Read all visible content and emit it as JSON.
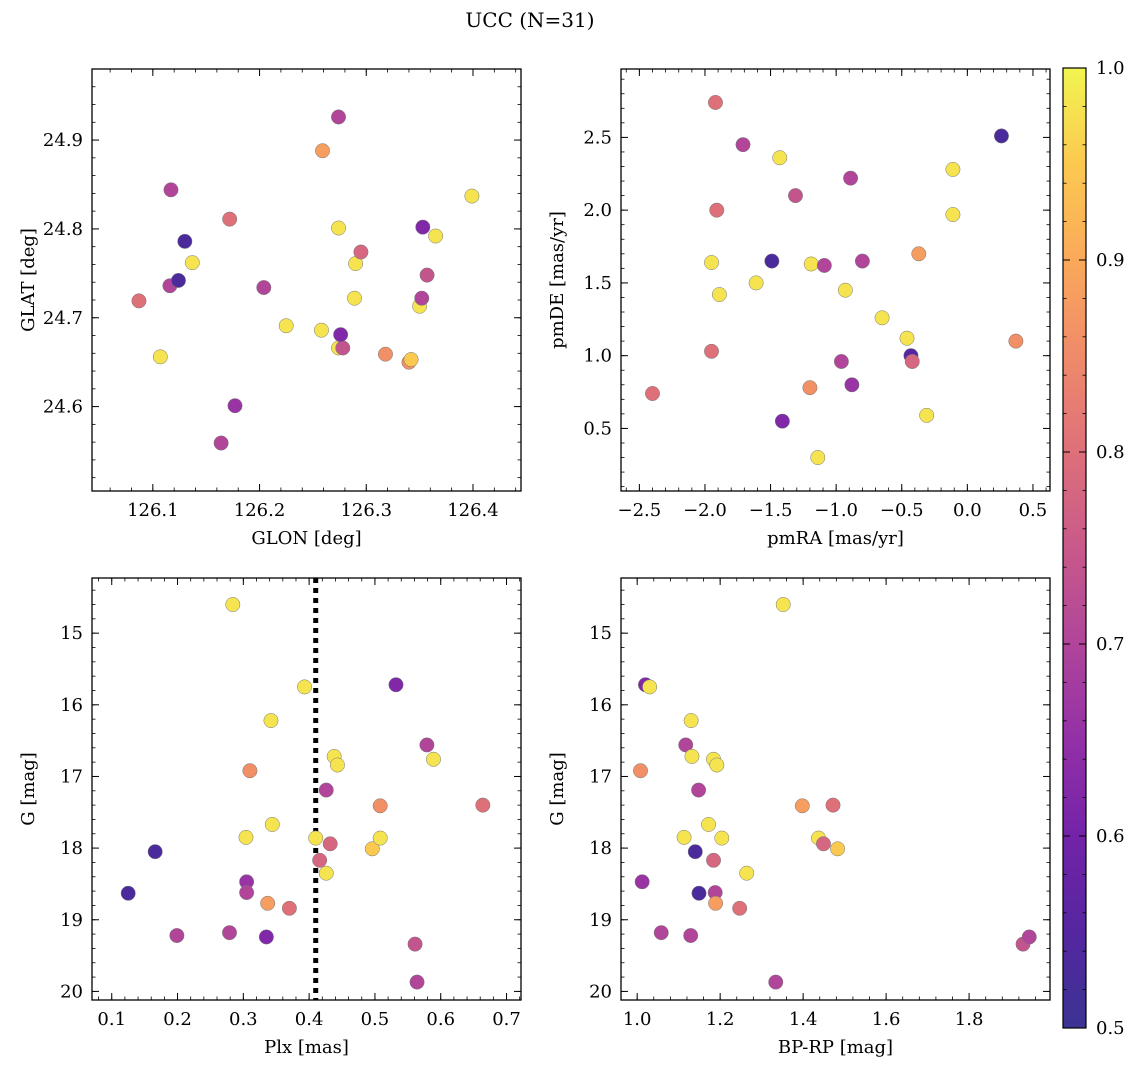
{
  "figure": {
    "title": "UCC (N=31)"
  },
  "colorbar": {
    "colormap": "plasma",
    "range": [
      0.5,
      1.0
    ],
    "ticks": [
      0.5,
      0.6,
      0.7,
      0.8,
      0.9,
      1.0
    ],
    "tick_labels": [
      "0.5",
      "0.6",
      "0.7",
      "0.8",
      "0.9",
      "1.0"
    ]
  },
  "chart_data": [
    {
      "type": "scatter",
      "id": "glon-glat",
      "xlabel": "GLON [deg]",
      "ylabel": "GLAT [deg]",
      "xlim": [
        126.043,
        126.445
      ],
      "ylim": [
        24.505,
        24.98
      ],
      "y_inverted": false,
      "xticks": [
        126.1,
        126.2,
        126.3,
        126.4
      ],
      "xtick_labels": [
        "126.1",
        "126.2",
        "126.3",
        "126.4"
      ],
      "yticks": [
        24.6,
        24.7,
        24.8,
        24.9
      ],
      "ytick_labels": [
        "24.6",
        "24.7",
        "24.8",
        "24.9"
      ],
      "grid": false,
      "points": [
        {
          "x": 126.087,
          "y": 24.719,
          "c": 0.8
        },
        {
          "x": 126.107,
          "y": 24.656,
          "c": 0.98
        },
        {
          "x": 126.117,
          "y": 24.844,
          "c": 0.7
        },
        {
          "x": 126.116,
          "y": 24.736,
          "c": 0.7
        },
        {
          "x": 126.124,
          "y": 24.742,
          "c": 0.53
        },
        {
          "x": 126.13,
          "y": 24.786,
          "c": 0.53
        },
        {
          "x": 126.137,
          "y": 24.762,
          "c": 0.98
        },
        {
          "x": 126.164,
          "y": 24.559,
          "c": 0.7
        },
        {
          "x": 126.172,
          "y": 24.811,
          "c": 0.8
        },
        {
          "x": 126.177,
          "y": 24.601,
          "c": 0.66
        },
        {
          "x": 126.204,
          "y": 24.734,
          "c": 0.7
        },
        {
          "x": 126.225,
          "y": 24.691,
          "c": 0.98
        },
        {
          "x": 126.259,
          "y": 24.888,
          "c": 0.88
        },
        {
          "x": 126.258,
          "y": 24.686,
          "c": 0.98
        },
        {
          "x": 126.274,
          "y": 24.926,
          "c": 0.7
        },
        {
          "x": 126.274,
          "y": 24.801,
          "c": 0.98
        },
        {
          "x": 126.274,
          "y": 24.666,
          "c": 0.98
        },
        {
          "x": 126.278,
          "y": 24.666,
          "c": 0.74
        },
        {
          "x": 126.276,
          "y": 24.681,
          "c": 0.62
        },
        {
          "x": 126.29,
          "y": 24.761,
          "c": 0.98
        },
        {
          "x": 126.289,
          "y": 24.722,
          "c": 0.98
        },
        {
          "x": 126.295,
          "y": 24.774,
          "c": 0.78
        },
        {
          "x": 126.318,
          "y": 24.659,
          "c": 0.86
        },
        {
          "x": 126.34,
          "y": 24.65,
          "c": 0.86
        },
        {
          "x": 126.342,
          "y": 24.653,
          "c": 0.95
        },
        {
          "x": 126.35,
          "y": 24.713,
          "c": 0.98
        },
        {
          "x": 126.352,
          "y": 24.722,
          "c": 0.7
        },
        {
          "x": 126.353,
          "y": 24.802,
          "c": 0.62
        },
        {
          "x": 126.357,
          "y": 24.748,
          "c": 0.74
        },
        {
          "x": 126.365,
          "y": 24.792,
          "c": 0.98
        },
        {
          "x": 126.399,
          "y": 24.837,
          "c": 0.98
        }
      ]
    },
    {
      "type": "scatter",
      "id": "pmra-pmde",
      "xlabel": "pmRA [mas/yr]",
      "ylabel": "pmDE [mas/yr]",
      "xlim": [
        -2.64,
        0.63
      ],
      "ylim": [
        0.07,
        2.97
      ],
      "y_inverted": false,
      "xticks": [
        -2.5,
        -2.0,
        -1.5,
        -1.0,
        -0.5,
        0.0,
        0.5
      ],
      "xtick_labels": [
        "−2.5",
        "−2.0",
        "−1.5",
        "−1.0",
        "−0.5",
        "0.0",
        "0.5"
      ],
      "yticks": [
        0.5,
        1.0,
        1.5,
        2.0,
        2.5
      ],
      "ytick_labels": [
        "0.5",
        "1.0",
        "1.5",
        "2.0",
        "2.5"
      ],
      "grid": false,
      "points": [
        {
          "x": -2.4,
          "y": 0.74,
          "c": 0.8
        },
        {
          "x": -1.95,
          "y": 1.03,
          "c": 0.8
        },
        {
          "x": -1.95,
          "y": 1.64,
          "c": 0.98
        },
        {
          "x": -1.92,
          "y": 2.74,
          "c": 0.8
        },
        {
          "x": -1.91,
          "y": 2.0,
          "c": 0.8
        },
        {
          "x": -1.89,
          "y": 1.42,
          "c": 0.98
        },
        {
          "x": -1.71,
          "y": 2.45,
          "c": 0.7
        },
        {
          "x": -1.61,
          "y": 1.5,
          "c": 0.98
        },
        {
          "x": -1.49,
          "y": 1.65,
          "c": 0.53
        },
        {
          "x": -1.43,
          "y": 2.36,
          "c": 0.98
        },
        {
          "x": -1.41,
          "y": 0.55,
          "c": 0.62
        },
        {
          "x": -1.2,
          "y": 0.78,
          "c": 0.86
        },
        {
          "x": -1.19,
          "y": 1.63,
          "c": 0.98
        },
        {
          "x": -1.14,
          "y": 0.3,
          "c": 0.98
        },
        {
          "x": -1.31,
          "y": 2.1,
          "c": 0.74
        },
        {
          "x": -1.09,
          "y": 1.62,
          "c": 0.7
        },
        {
          "x": -0.96,
          "y": 0.96,
          "c": 0.7
        },
        {
          "x": -0.93,
          "y": 1.45,
          "c": 0.98
        },
        {
          "x": -0.89,
          "y": 2.22,
          "c": 0.7
        },
        {
          "x": -0.88,
          "y": 0.8,
          "c": 0.66
        },
        {
          "x": -0.8,
          "y": 1.65,
          "c": 0.7
        },
        {
          "x": -0.65,
          "y": 1.26,
          "c": 0.98
        },
        {
          "x": -0.46,
          "y": 1.12,
          "c": 0.98
        },
        {
          "x": -0.43,
          "y": 1.0,
          "c": 0.55
        },
        {
          "x": -0.42,
          "y": 0.96,
          "c": 0.78
        },
        {
          "x": -0.37,
          "y": 1.7,
          "c": 0.88
        },
        {
          "x": -0.31,
          "y": 0.59,
          "c": 0.98
        },
        {
          "x": -0.11,
          "y": 1.97,
          "c": 0.98
        },
        {
          "x": -0.11,
          "y": 2.28,
          "c": 0.98
        },
        {
          "x": 0.26,
          "y": 2.51,
          "c": 0.53
        },
        {
          "x": 0.37,
          "y": 1.1,
          "c": 0.86
        }
      ]
    },
    {
      "type": "scatter",
      "id": "plx-g",
      "xlabel": "Plx [mas]",
      "ylabel": "G [mag]",
      "xlim": [
        0.07,
        0.722
      ],
      "ylim": [
        20.12,
        14.23
      ],
      "y_inverted": true,
      "xticks": [
        0.1,
        0.2,
        0.3,
        0.4,
        0.5,
        0.6,
        0.7
      ],
      "xtick_labels": [
        "0.1",
        "0.2",
        "0.3",
        "0.4",
        "0.5",
        "0.6",
        "0.7"
      ],
      "yticks": [
        15,
        16,
        17,
        18,
        19,
        20
      ],
      "ytick_labels": [
        "15",
        "16",
        "17",
        "18",
        "19",
        "20"
      ],
      "grid": false,
      "reference_line": {
        "x": 0.41,
        "style": "dotted"
      },
      "points": [
        {
          "x": 0.125,
          "y": 18.63,
          "c": 0.53
        },
        {
          "x": 0.166,
          "y": 18.05,
          "c": 0.53
        },
        {
          "x": 0.199,
          "y": 19.22,
          "c": 0.7
        },
        {
          "x": 0.279,
          "y": 19.18,
          "c": 0.7
        },
        {
          "x": 0.284,
          "y": 14.6,
          "c": 0.98
        },
        {
          "x": 0.304,
          "y": 17.85,
          "c": 0.98
        },
        {
          "x": 0.305,
          "y": 18.47,
          "c": 0.66
        },
        {
          "x": 0.305,
          "y": 18.62,
          "c": 0.7
        },
        {
          "x": 0.31,
          "y": 16.92,
          "c": 0.86
        },
        {
          "x": 0.335,
          "y": 19.24,
          "c": 0.62
        },
        {
          "x": 0.337,
          "y": 18.77,
          "c": 0.88
        },
        {
          "x": 0.342,
          "y": 16.22,
          "c": 0.98
        },
        {
          "x": 0.344,
          "y": 17.67,
          "c": 0.98
        },
        {
          "x": 0.37,
          "y": 18.84,
          "c": 0.8
        },
        {
          "x": 0.393,
          "y": 15.75,
          "c": 0.98
        },
        {
          "x": 0.41,
          "y": 17.86,
          "c": 0.98
        },
        {
          "x": 0.416,
          "y": 18.17,
          "c": 0.78
        },
        {
          "x": 0.426,
          "y": 17.19,
          "c": 0.7
        },
        {
          "x": 0.426,
          "y": 18.35,
          "c": 0.98
        },
        {
          "x": 0.432,
          "y": 17.94,
          "c": 0.78
        },
        {
          "x": 0.438,
          "y": 16.72,
          "c": 0.98
        },
        {
          "x": 0.443,
          "y": 16.84,
          "c": 0.98
        },
        {
          "x": 0.496,
          "y": 18.01,
          "c": 0.95
        },
        {
          "x": 0.508,
          "y": 17.41,
          "c": 0.86
        },
        {
          "x": 0.508,
          "y": 17.86,
          "c": 0.98
        },
        {
          "x": 0.532,
          "y": 15.72,
          "c": 0.62
        },
        {
          "x": 0.561,
          "y": 19.34,
          "c": 0.74
        },
        {
          "x": 0.564,
          "y": 19.87,
          "c": 0.7
        },
        {
          "x": 0.579,
          "y": 16.56,
          "c": 0.7
        },
        {
          "x": 0.589,
          "y": 16.76,
          "c": 0.98
        },
        {
          "x": 0.664,
          "y": 17.4,
          "c": 0.8
        }
      ]
    },
    {
      "type": "scatter",
      "id": "bprp-g",
      "xlabel": "BP-RP [mag]",
      "ylabel": "G [mag]",
      "xlim": [
        0.961,
        1.995
      ],
      "ylim": [
        20.12,
        14.23
      ],
      "y_inverted": true,
      "xticks": [
        1.0,
        1.2,
        1.4,
        1.6,
        1.8
      ],
      "xtick_labels": [
        "1.0",
        "1.2",
        "1.4",
        "1.6",
        "1.8"
      ],
      "yticks": [
        15,
        16,
        17,
        18,
        19,
        20
      ],
      "ytick_labels": [
        "15",
        "16",
        "17",
        "18",
        "19",
        "20"
      ],
      "grid": false,
      "points": [
        {
          "x": 1.008,
          "y": 16.92,
          "c": 0.86
        },
        {
          "x": 1.012,
          "y": 18.47,
          "c": 0.66
        },
        {
          "x": 1.02,
          "y": 15.72,
          "c": 0.62
        },
        {
          "x": 1.03,
          "y": 15.75,
          "c": 0.98
        },
        {
          "x": 1.058,
          "y": 19.18,
          "c": 0.7
        },
        {
          "x": 1.113,
          "y": 17.85,
          "c": 0.98
        },
        {
          "x": 1.117,
          "y": 16.56,
          "c": 0.7
        },
        {
          "x": 1.129,
          "y": 19.22,
          "c": 0.7
        },
        {
          "x": 1.13,
          "y": 16.22,
          "c": 0.98
        },
        {
          "x": 1.132,
          "y": 16.72,
          "c": 0.98
        },
        {
          "x": 1.14,
          "y": 18.05,
          "c": 0.53
        },
        {
          "x": 1.149,
          "y": 18.63,
          "c": 0.53
        },
        {
          "x": 1.148,
          "y": 17.19,
          "c": 0.7
        },
        {
          "x": 1.172,
          "y": 17.67,
          "c": 0.98
        },
        {
          "x": 1.184,
          "y": 16.76,
          "c": 0.98
        },
        {
          "x": 1.184,
          "y": 18.17,
          "c": 0.78
        },
        {
          "x": 1.188,
          "y": 18.62,
          "c": 0.7
        },
        {
          "x": 1.189,
          "y": 18.77,
          "c": 0.88
        },
        {
          "x": 1.192,
          "y": 16.84,
          "c": 0.98
        },
        {
          "x": 1.204,
          "y": 17.86,
          "c": 0.98
        },
        {
          "x": 1.247,
          "y": 18.84,
          "c": 0.8
        },
        {
          "x": 1.264,
          "y": 18.35,
          "c": 0.98
        },
        {
          "x": 1.334,
          "y": 19.87,
          "c": 0.7
        },
        {
          "x": 1.352,
          "y": 14.6,
          "c": 0.98
        },
        {
          "x": 1.398,
          "y": 17.41,
          "c": 0.88
        },
        {
          "x": 1.437,
          "y": 17.86,
          "c": 0.98
        },
        {
          "x": 1.449,
          "y": 17.94,
          "c": 0.78
        },
        {
          "x": 1.472,
          "y": 17.4,
          "c": 0.8
        },
        {
          "x": 1.483,
          "y": 18.01,
          "c": 0.95
        },
        {
          "x": 1.93,
          "y": 19.34,
          "c": 0.74
        },
        {
          "x": 1.945,
          "y": 19.24,
          "c": 0.7
        }
      ]
    }
  ]
}
